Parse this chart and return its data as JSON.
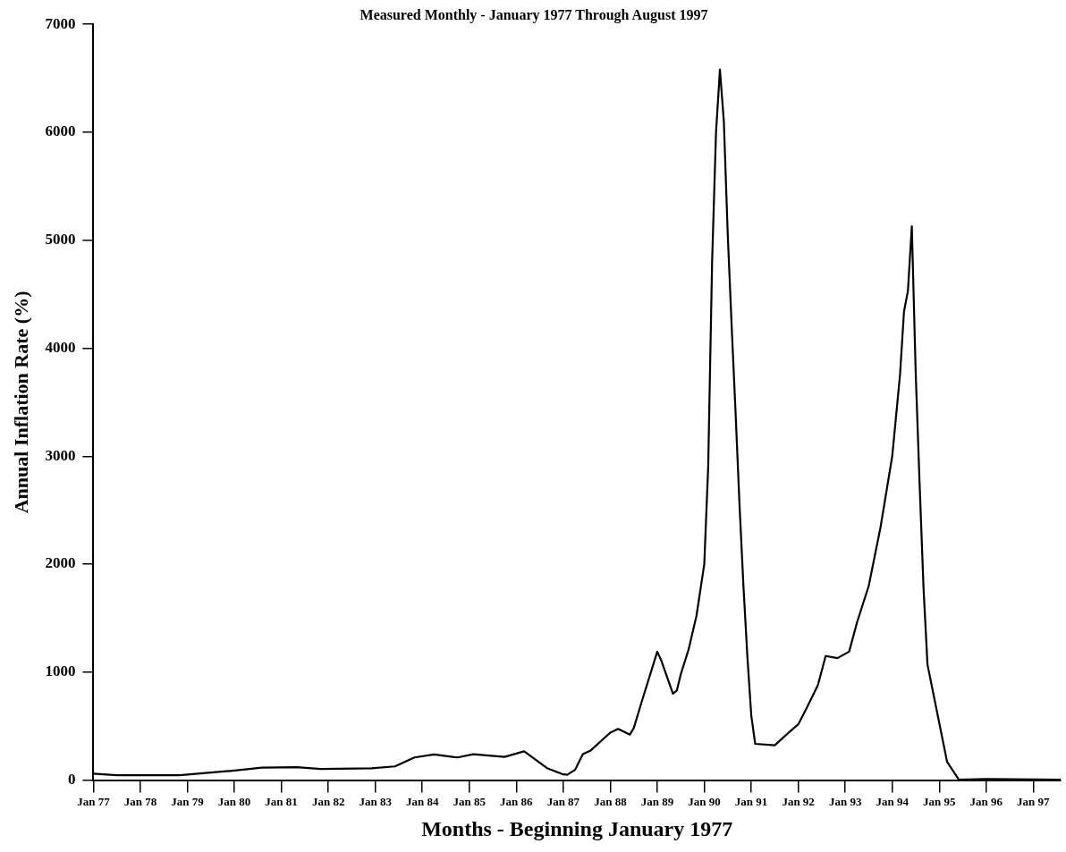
{
  "chart_data": {
    "type": "line",
    "title": "Measured Monthly - January 1977 Through August 1997",
    "xlabel": "Months - Beginning January 1977",
    "ylabel": "Annual Inflation Rate (%)",
    "x": [
      "1977-01",
      "1977-07",
      "1978-11",
      "1979-12",
      "1980-08",
      "1981-05",
      "1981-11",
      "1982-12",
      "1983-06",
      "1983-11",
      "1984-04",
      "1984-10",
      "1985-02",
      "1985-10",
      "1986-03",
      "1986-09",
      "1987-01",
      "1987-02",
      "1987-04",
      "1987-06",
      "1987-08",
      "1988-01",
      "1988-03",
      "1988-06",
      "1988-07",
      "1988-09",
      "1989-01",
      "1989-02",
      "1989-05",
      "1989-06",
      "1989-07",
      "1989-09",
      "1989-11",
      "1990-01",
      "1990-02",
      "1990-03",
      "1990-04",
      "1990-05",
      "1990-06",
      "1990-07",
      "1990-08",
      "1990-09",
      "1990-10",
      "1990-11",
      "1990-12",
      "1991-01",
      "1991-02",
      "1991-07",
      "1991-10",
      "1992-01",
      "1992-03",
      "1992-06",
      "1992-08",
      "1992-11",
      "1993-02",
      "1993-04",
      "1993-07",
      "1993-10",
      "1994-01",
      "1994-03",
      "1994-04",
      "1994-05",
      "1994-06",
      "1994-07",
      "1994-08",
      "1994-09",
      "1994-10",
      "1995-01",
      "1995-03",
      "1995-06",
      "1996-01",
      "1997-08"
    ],
    "series": [
      {
        "color": "#000000",
        "values": [
          60,
          45,
          45,
          85,
          115,
          120,
          103,
          110,
          127,
          210,
          238,
          210,
          240,
          215,
          267,
          108,
          53,
          49,
          95,
          240,
          275,
          440,
          474,
          422,
          482,
          723,
          1190,
          1110,
          800,
          830,
          980,
          1210,
          1520,
          2000,
          2900,
          4800,
          6000,
          6580,
          6100,
          5050,
          4200,
          3400,
          2550,
          1800,
          1150,
          600,
          336,
          323,
          422,
          517,
          657,
          878,
          1150,
          1130,
          1190,
          1460,
          1800,
          2340,
          3000,
          3760,
          4340,
          4530,
          5130,
          3760,
          2730,
          1770,
          1070,
          530,
          170,
          5,
          10,
          5
        ]
      }
    ],
    "xlim": [
      "1977-01",
      "1997-08"
    ],
    "xticks": [
      {
        "value": "1977-01",
        "label": "Jan 77"
      },
      {
        "value": "1978-01",
        "label": "Jan 78"
      },
      {
        "value": "1979-01",
        "label": "Jan 79"
      },
      {
        "value": "1980-01",
        "label": "Jan 80"
      },
      {
        "value": "1981-01",
        "label": "Jan 81"
      },
      {
        "value": "1982-01",
        "label": "Jan 82"
      },
      {
        "value": "1983-01",
        "label": "Jan 83"
      },
      {
        "value": "1984-01",
        "label": "Jan 84"
      },
      {
        "value": "1985-01",
        "label": "Jan 85"
      },
      {
        "value": "1986-01",
        "label": "Jan 86"
      },
      {
        "value": "1987-01",
        "label": "Jan 87"
      },
      {
        "value": "1988-01",
        "label": "Jan 88"
      },
      {
        "value": "1989-01",
        "label": "Jan 89"
      },
      {
        "value": "1990-01",
        "label": "Jan 90"
      },
      {
        "value": "1991-01",
        "label": "Jan 91"
      },
      {
        "value": "1992-01",
        "label": "Jan 92"
      },
      {
        "value": "1993-01",
        "label": "Jan 93"
      },
      {
        "value": "1994-01",
        "label": "Jan 94"
      },
      {
        "value": "1995-01",
        "label": "Jan 95"
      },
      {
        "value": "1996-01",
        "label": "Jan 96"
      },
      {
        "value": "1997-01",
        "label": "Jan 97"
      }
    ],
    "ylim": [
      0,
      7000
    ],
    "yticks": [
      0,
      1000,
      2000,
      3000,
      4000,
      5000,
      6000,
      7000
    ],
    "grid": false,
    "legend": false,
    "marker": "none",
    "line_style": "solid"
  }
}
